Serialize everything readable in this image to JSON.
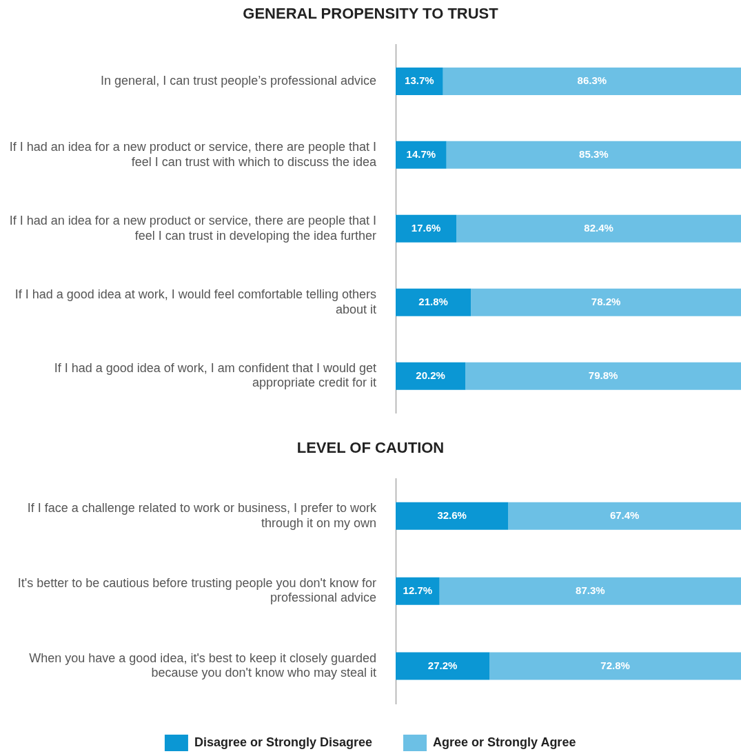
{
  "chart_data": [
    {
      "type": "bar",
      "title": "GENERAL PROPENSITY TO TRUST",
      "orientation": "horizontal",
      "stacked": true,
      "xlim": [
        0,
        100
      ],
      "tick_labels": "y",
      "legend": false,
      "categories": [
        "In general, I can trust people’s professional advice",
        "If I had an idea for a new product or service, there are people that I feel I can trust with which to discuss the idea",
        "If I had an idea for a new product or service, there are people that I feel I can trust in developing the idea further",
        "If I had a good idea at work, I would feel comfortable telling others about it",
        "If I had a good idea of work, I am confident that I would get appropriate credit for it"
      ],
      "series": [
        {
          "color": "#0b97d4",
          "values": [
            13.7,
            14.7,
            17.6,
            21.8,
            20.2
          ],
          "value_labels": [
            "13.7%",
            "14.7%",
            "17.6%",
            "21.8%",
            "20.2%"
          ]
        },
        {
          "color": "#6cc0e5",
          "values": [
            86.3,
            85.3,
            82.4,
            78.2,
            79.8
          ],
          "value_labels": [
            "86.3%",
            "85.3%",
            "82.4%",
            "78.2%",
            "79.8%"
          ]
        }
      ]
    },
    {
      "type": "bar",
      "title": "LEVEL OF CAUTION",
      "orientation": "horizontal",
      "stacked": true,
      "xlim": [
        0,
        100
      ],
      "tick_labels": "y",
      "legend": "bottom",
      "categories": [
        "If I face a challenge related to work or business, I prefer to work through it on my own",
        "It's better to be cautious before trusting people you don't know for professional advice",
        "When you have a good idea, it's best to keep it closely guarded because you don't know who may steal it"
      ],
      "series": [
        {
          "name": "Disagree or Strongly Disagree",
          "color": "#0b97d4",
          "values": [
            32.6,
            12.7,
            27.2
          ],
          "value_labels": [
            "32.6%",
            "12.7%",
            "27.2%"
          ]
        },
        {
          "name": "Agree or Strongly Agree",
          "color": "#6cc0e5",
          "values": [
            67.4,
            87.3,
            72.8
          ],
          "value_labels": [
            "67.4%",
            "87.3%",
            "72.8%"
          ]
        }
      ]
    }
  ]
}
